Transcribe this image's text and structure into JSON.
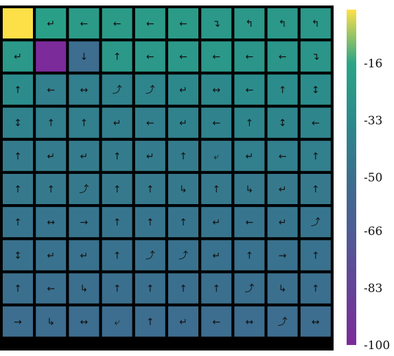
{
  "chart_data": {
    "type": "heatmap",
    "title": "",
    "xlabel": "",
    "ylabel": "",
    "rows": 10,
    "cols": 10,
    "values": [
      [
        0,
        -20,
        -22,
        -22,
        -22,
        -22,
        -24,
        -24,
        -24,
        -24
      ],
      [
        -24,
        -100,
        -52,
        -24,
        -24,
        -24,
        -24,
        -26,
        -26,
        -26
      ],
      [
        -32,
        -40,
        -40,
        -38,
        -36,
        -34,
        -34,
        -32,
        -32,
        -32
      ],
      [
        -38,
        -40,
        -40,
        -40,
        -40,
        -38,
        -38,
        -36,
        -36,
        -36
      ],
      [
        -42,
        -42,
        -42,
        -42,
        -42,
        -42,
        -42,
        -40,
        -40,
        -40
      ],
      [
        -44,
        -44,
        -44,
        -44,
        -44,
        -44,
        -44,
        -44,
        -44,
        -44
      ],
      [
        -46,
        -46,
        -46,
        -46,
        -46,
        -46,
        -46,
        -46,
        -46,
        -46
      ],
      [
        -48,
        -48,
        -48,
        -48,
        -48,
        -48,
        -48,
        -48,
        -48,
        -48
      ],
      [
        -50,
        -50,
        -50,
        -50,
        -50,
        -50,
        -50,
        -50,
        -50,
        -50
      ],
      [
        -52,
        -52,
        -52,
        -52,
        -52,
        -52,
        -52,
        -52,
        -52,
        -52
      ]
    ],
    "arrows": [
      [
        "",
        "↵",
        "←",
        "←",
        "←",
        "←",
        "↴",
        "↰",
        "↰",
        "↰"
      ],
      [
        "↵",
        "",
        "↓",
        "↑",
        "←",
        "←",
        "←",
        "←",
        "←",
        "↴"
      ],
      [
        "↑",
        "←",
        "↔",
        "⤴",
        "⤴",
        "↵",
        "↔",
        "←",
        "↑",
        "↕"
      ],
      [
        "↕",
        "↑",
        "↑",
        "↵",
        "←",
        "↵",
        "←",
        "↑",
        "↕",
        "←"
      ],
      [
        "↑",
        "↵",
        "↵",
        "↑",
        "↵",
        "↑",
        "⤶",
        "↵",
        "←",
        "↑"
      ],
      [
        "↑",
        "↑",
        "⤴",
        "↑",
        "↑",
        "↳",
        "↑",
        "↳",
        "↵",
        "↑"
      ],
      [
        "↑",
        "↔",
        "→",
        "↑",
        "↑",
        "↑",
        "↵",
        "←",
        "↵",
        "⤴"
      ],
      [
        "↕",
        "↵",
        "↵",
        "↑",
        "⤴",
        "⤴",
        "↵",
        "↑",
        "→",
        "↑"
      ],
      [
        "↑",
        "←",
        "↳",
        "↑",
        "↑",
        "↑",
        "↑",
        "⤴",
        "↳",
        "↑"
      ],
      [
        "→",
        "↳",
        "↔",
        "⤶",
        "↑",
        "↵",
        "←",
        "↔",
        "⤴",
        "↔"
      ]
    ],
    "color_scale": {
      "min": -100,
      "max": 0,
      "colors": [
        "#7c2b9a",
        "#4e5c96",
        "#3b6f8e",
        "#2c8a8c",
        "#2aa586",
        "#fde047"
      ],
      "stops": [
        -100,
        -66,
        -50,
        -33,
        -16,
        0
      ]
    },
    "colorbar_ticks": [
      {
        "value": -16,
        "label": "-16"
      },
      {
        "value": -33,
        "label": "-33"
      },
      {
        "value": -50,
        "label": "-50"
      },
      {
        "value": -66,
        "label": "-66"
      },
      {
        "value": -83,
        "label": "-83"
      },
      {
        "value": -100,
        "label": "-100"
      }
    ]
  }
}
